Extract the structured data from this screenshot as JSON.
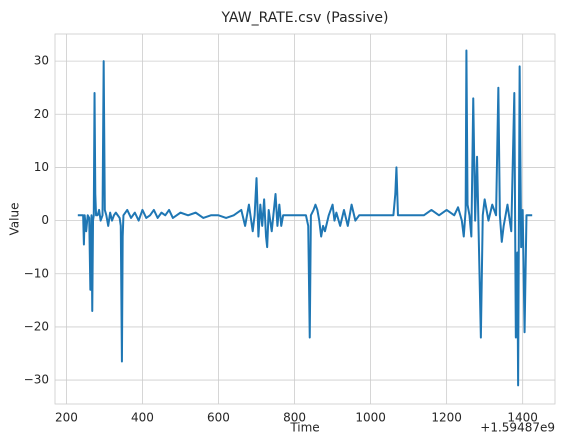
{
  "chart_data": {
    "type": "line",
    "title": "YAW_RATE.csv (Passive)",
    "xlabel": "Time",
    "ylabel": "Value",
    "x_offset_label": "+1.59487e9",
    "x": [
      230,
      240,
      244,
      246,
      248,
      252,
      256,
      260,
      263,
      266,
      268,
      270,
      272,
      274,
      276,
      278,
      282,
      286,
      290,
      295,
      298,
      301,
      305,
      310,
      315,
      320,
      325,
      330,
      340,
      343,
      346,
      348,
      350,
      360,
      370,
      380,
      390,
      400,
      410,
      420,
      430,
      440,
      450,
      460,
      470,
      480,
      490,
      500,
      520,
      540,
      560,
      580,
      600,
      620,
      640,
      660,
      670,
      680,
      690,
      695,
      700,
      705,
      710,
      715,
      720,
      725,
      728,
      732,
      740,
      750,
      755,
      760,
      765,
      770,
      780,
      790,
      800,
      810,
      820,
      830,
      836,
      840,
      843,
      850,
      855,
      860,
      865,
      870,
      875,
      880,
      890,
      900,
      905,
      910,
      920,
      930,
      940,
      945,
      950,
      960,
      970,
      980,
      1000,
      1020,
      1040,
      1060,
      1065,
      1068,
      1072,
      1080,
      1100,
      1120,
      1140,
      1160,
      1180,
      1200,
      1220,
      1230,
      1240,
      1245,
      1250,
      1252,
      1255,
      1260,
      1265,
      1270,
      1275,
      1280,
      1285,
      1290,
      1295,
      1300,
      1310,
      1320,
      1330,
      1336,
      1340,
      1345,
      1350,
      1360,
      1370,
      1378,
      1382,
      1386,
      1388,
      1392,
      1396,
      1400,
      1405,
      1410,
      1420,
      1425
    ],
    "series": [
      {
        "name": "YAW_RATE",
        "color": "#1f77b4",
        "values": [
          1,
          1,
          1,
          -4.5,
          1,
          -2,
          1,
          0.5,
          -13,
          1,
          -17,
          0,
          1,
          24,
          5,
          1,
          1,
          2,
          0,
          1,
          30,
          2,
          1,
          -1,
          1.5,
          0,
          1,
          1.5,
          0.5,
          -1,
          -26.5,
          -3,
          1,
          2,
          0.5,
          1.5,
          0,
          2,
          0.5,
          1,
          2,
          0.5,
          1.5,
          1,
          2,
          0.5,
          1,
          1.5,
          1,
          1.5,
          0.5,
          1,
          1,
          0.5,
          1,
          2,
          -1,
          3,
          -2,
          1,
          8,
          -3,
          3,
          -1,
          4,
          -3,
          -5,
          2,
          -2,
          5,
          -1,
          3,
          -1,
          1,
          1,
          1,
          1,
          1,
          1,
          1,
          -1,
          -22,
          1,
          2,
          3,
          2,
          0,
          -3,
          -1,
          -2,
          1,
          3,
          0,
          1.5,
          -1,
          2,
          -1,
          1,
          3,
          0,
          1,
          1,
          1,
          1,
          1,
          1,
          5,
          10,
          1,
          1,
          1,
          1,
          1,
          2,
          1,
          2,
          1,
          2.5,
          0,
          -3,
          2,
          32,
          3,
          1,
          -3,
          23,
          0,
          12,
          -5,
          -22,
          1,
          4,
          0,
          3,
          1,
          25,
          1,
          -4,
          -1,
          3,
          -2,
          24,
          -22,
          -6,
          -31,
          29,
          -5,
          2,
          -21,
          1,
          1,
          1
        ]
      }
    ],
    "xlim": [
      170,
      1485
    ],
    "ylim": [
      -34.5,
      35.1
    ],
    "xticks": [
      200,
      400,
      600,
      800,
      1000,
      1200,
      1400
    ],
    "yticks": [
      {
        "value": -30,
        "label": "−30"
      },
      {
        "value": -20,
        "label": "−20"
      },
      {
        "value": -10,
        "label": "−10"
      },
      0,
      10,
      20,
      30
    ],
    "grid": true
  }
}
